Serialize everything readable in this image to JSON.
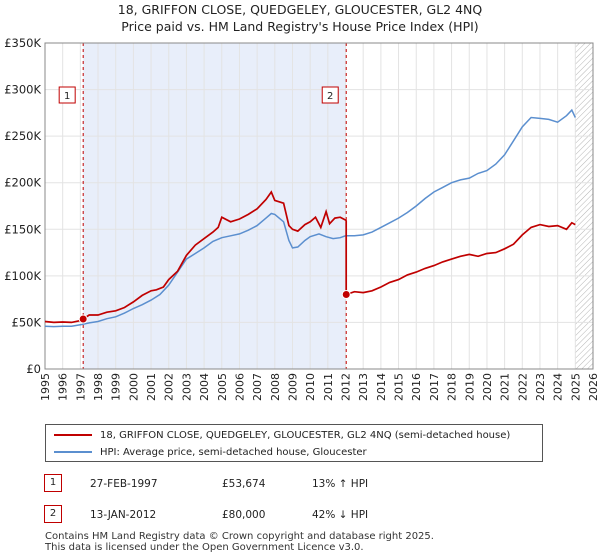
{
  "title": {
    "line1": "18, GRIFFON CLOSE, QUEDGELEY, GLOUCESTER, GL2 4NQ",
    "line2": "Price paid vs. HM Land Registry's House Price Index (HPI)"
  },
  "chart_data": {
    "type": "line",
    "y_ticks": [
      "£0",
      "£50K",
      "£100K",
      "£150K",
      "£200K",
      "£250K",
      "£300K",
      "£350K"
    ],
    "y_tick_values": [
      0,
      50000,
      100000,
      150000,
      200000,
      250000,
      300000,
      350000
    ],
    "ylim": [
      0,
      350000
    ],
    "x_ticks": [
      "1995",
      "1996",
      "1997",
      "1998",
      "1999",
      "2000",
      "2001",
      "2002",
      "2003",
      "2004",
      "2005",
      "2006",
      "2007",
      "2008",
      "2009",
      "2010",
      "2011",
      "2012",
      "2013",
      "2014",
      "2015",
      "2016",
      "2017",
      "2018",
      "2019",
      "2020",
      "2021",
      "2022",
      "2023",
      "2024",
      "2025",
      "2026"
    ],
    "xlim": [
      1995,
      2026
    ],
    "shaded_period": [
      1997.16,
      2012.04
    ],
    "hatched_from": 2025.0,
    "colors": {
      "property": "#c00000",
      "hpi": "#5b8fcf",
      "shade": "#e8eefa"
    },
    "series": [
      {
        "name": "18, GRIFFON CLOSE, QUEDGELEY, GLOUCESTER, GL2 4NQ (semi-detached house)",
        "x": [
          1995.0,
          1995.5,
          1996.0,
          1996.5,
          1997.0,
          1997.16,
          1997.5,
          1998.0,
          1998.5,
          1999.0,
          1999.5,
          2000.0,
          2000.5,
          2001.0,
          2001.3,
          2001.7,
          2002.0,
          2002.5,
          2003.0,
          2003.5,
          2004.0,
          2004.5,
          2004.8,
          2005.0,
          2005.5,
          2006.0,
          2006.5,
          2007.0,
          2007.5,
          2007.8,
          2008.0,
          2008.5,
          2008.8,
          2009.0,
          2009.3,
          2009.7,
          2010.0,
          2010.3,
          2010.6,
          2010.9,
          2011.1,
          2011.4,
          2011.7,
          2012.0,
          2012.04,
          2012.04,
          2012.5,
          2013.0,
          2013.5,
          2014.0,
          2014.5,
          2015.0,
          2015.5,
          2016.0,
          2016.5,
          2017.0,
          2017.5,
          2018.0,
          2018.5,
          2019.0,
          2019.5,
          2020.0,
          2020.5,
          2021.0,
          2021.5,
          2022.0,
          2022.5,
          2023.0,
          2023.5,
          2024.0,
          2024.5,
          2024.8,
          2025.0
        ],
        "values": [
          51000,
          50000,
          50500,
          50000,
          52000,
          53674,
          58000,
          58000,
          61000,
          62500,
          66000,
          72000,
          79000,
          84000,
          85000,
          88000,
          96000,
          105000,
          122000,
          133000,
          140000,
          147000,
          152000,
          163000,
          158000,
          161000,
          166000,
          172000,
          182000,
          190000,
          181000,
          178000,
          154000,
          150000,
          148000,
          155000,
          158000,
          163000,
          152000,
          169000,
          156000,
          162000,
          163000,
          160000,
          159000,
          80000,
          83000,
          82000,
          84000,
          88000,
          93000,
          96000,
          101000,
          104000,
          108000,
          111000,
          115000,
          118000,
          121000,
          123000,
          121000,
          124000,
          125000,
          129000,
          134000,
          144000,
          152000,
          155000,
          153000,
          154000,
          150000,
          157000,
          155000
        ]
      },
      {
        "name": "HPI: Average price, semi-detached house, Gloucester",
        "x": [
          1995.0,
          1995.5,
          1996.0,
          1996.5,
          1997.0,
          1997.5,
          1998.0,
          1998.5,
          1999.0,
          1999.5,
          2000.0,
          2000.5,
          2001.0,
          2001.5,
          2002.0,
          2002.5,
          2003.0,
          2003.5,
          2004.0,
          2004.5,
          2005.0,
          2005.5,
          2006.0,
          2006.5,
          2007.0,
          2007.5,
          2007.8,
          2008.0,
          2008.5,
          2008.8,
          2009.0,
          2009.3,
          2009.7,
          2010.0,
          2010.5,
          2010.9,
          2011.3,
          2011.7,
          2012.0,
          2012.5,
          2013.0,
          2013.5,
          2014.0,
          2014.5,
          2015.0,
          2015.5,
          2016.0,
          2016.5,
          2017.0,
          2017.5,
          2018.0,
          2018.5,
          2019.0,
          2019.5,
          2020.0,
          2020.5,
          2021.0,
          2021.5,
          2022.0,
          2022.5,
          2023.0,
          2023.5,
          2024.0,
          2024.5,
          2024.8,
          2025.0
        ],
        "values": [
          46000,
          45500,
          46000,
          46000,
          47500,
          49500,
          51000,
          54000,
          56000,
          60000,
          65000,
          69000,
          74000,
          80000,
          90000,
          104000,
          118000,
          124000,
          130000,
          137000,
          141000,
          143000,
          145000,
          149000,
          154000,
          162000,
          167000,
          166000,
          158000,
          138000,
          130000,
          131000,
          138000,
          142000,
          145000,
          142000,
          140000,
          141000,
          143000,
          143000,
          144000,
          147000,
          152000,
          157000,
          162000,
          168000,
          175000,
          183000,
          190000,
          195000,
          200000,
          203000,
          205000,
          210000,
          213000,
          220000,
          230000,
          245000,
          260000,
          270000,
          269000,
          268000,
          265000,
          272000,
          278000,
          270000
        ]
      }
    ],
    "markers": [
      {
        "label": "1",
        "x": 1997.16,
        "value": 53674
      },
      {
        "label": "2",
        "x": 2012.04,
        "value": 80000
      }
    ]
  },
  "legend": {
    "property_label": "18, GRIFFON CLOSE, QUEDGELEY, GLOUCESTER, GL2 4NQ (semi-detached house)",
    "hpi_label": "HPI: Average price, semi-detached house, Gloucester"
  },
  "transactions": [
    {
      "num": "1",
      "date": "27-FEB-1997",
      "price": "£53,674",
      "hpi": "13% ↑ HPI"
    },
    {
      "num": "2",
      "date": "13-JAN-2012",
      "price": "£80,000",
      "hpi": "42% ↓ HPI"
    }
  ],
  "footer": {
    "line1": "Contains HM Land Registry data © Crown copyright and database right 2025.",
    "line2": "This data is licensed under the Open Government Licence v3.0."
  }
}
